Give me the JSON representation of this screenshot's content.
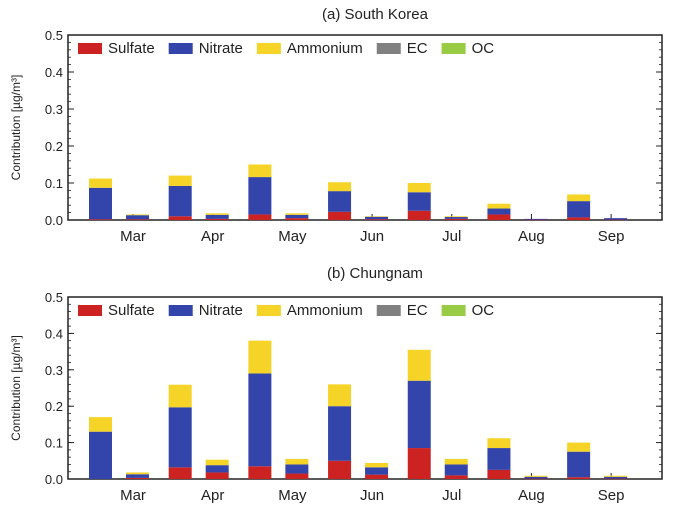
{
  "chart_data": [
    {
      "type": "bar",
      "stacked": true,
      "title": "(a) South Korea",
      "ylabel": "Contribution [µg/m³]",
      "ylim": [
        0,
        0.5
      ],
      "yticks": [
        "0.0",
        "0.1",
        "0.2",
        "0.3",
        "0.4",
        "0.5"
      ],
      "categories": [
        "Mar",
        "Apr",
        "May",
        "Jun",
        "Jul",
        "Aug",
        "Sep"
      ],
      "bars_per_category": 2,
      "legend_position": "top-left",
      "series": [
        {
          "name": "Sulfate",
          "color": "#cc2222",
          "values": [
            [
              0.002,
              0.002
            ],
            [
              0.01,
              0.003
            ],
            [
              0.015,
              0.005
            ],
            [
              0.022,
              0.002
            ],
            [
              0.025,
              0.003
            ],
            [
              0.015,
              0.001
            ],
            [
              0.007,
              0.001
            ]
          ]
        },
        {
          "name": "Nitrate",
          "color": "#3344aa",
          "values": [
            [
              0.085,
              0.011
            ],
            [
              0.082,
              0.011
            ],
            [
              0.101,
              0.009
            ],
            [
              0.056,
              0.007
            ],
            [
              0.05,
              0.005
            ],
            [
              0.016,
              0.002
            ],
            [
              0.044,
              0.004
            ]
          ]
        },
        {
          "name": "Ammonium",
          "color": "#f5d327",
          "values": [
            [
              0.025,
              0.002
            ],
            [
              0.028,
              0.004
            ],
            [
              0.034,
              0.004
            ],
            [
              0.024,
              0.001
            ],
            [
              0.025,
              0.002
            ],
            [
              0.013,
              0.0
            ],
            [
              0.018,
              0.0
            ]
          ]
        },
        {
          "name": "EC",
          "color": "#808080",
          "values": [
            [
              0,
              0
            ],
            [
              0,
              0
            ],
            [
              0,
              0
            ],
            [
              0,
              0
            ],
            [
              0,
              0
            ],
            [
              0,
              0
            ],
            [
              0,
              0
            ]
          ]
        },
        {
          "name": "OC",
          "color": "#99cc44",
          "values": [
            [
              0,
              0
            ],
            [
              0,
              0
            ],
            [
              0,
              0
            ],
            [
              0,
              0
            ],
            [
              0,
              0
            ],
            [
              0,
              0
            ],
            [
              0,
              0
            ]
          ]
        }
      ]
    },
    {
      "type": "bar",
      "stacked": true,
      "title": "(b) Chungnam",
      "ylabel": "Contribution [µg/m³]",
      "ylim": [
        0,
        0.5
      ],
      "yticks": [
        "0.0",
        "0.1",
        "0.2",
        "0.3",
        "0.4",
        "0.5"
      ],
      "categories": [
        "Mar",
        "Apr",
        "May",
        "Jun",
        "Jul",
        "Aug",
        "Sep"
      ],
      "bars_per_category": 2,
      "legend_position": "top-left",
      "series": [
        {
          "name": "Sulfate",
          "color": "#cc2222",
          "values": [
            [
              0.0,
              0.003
            ],
            [
              0.032,
              0.018
            ],
            [
              0.035,
              0.015
            ],
            [
              0.05,
              0.012
            ],
            [
              0.085,
              0.01
            ],
            [
              0.025,
              0.001
            ],
            [
              0.005,
              0.001
            ]
          ]
        },
        {
          "name": "Nitrate",
          "color": "#3344aa",
          "values": [
            [
              0.13,
              0.01
            ],
            [
              0.165,
              0.02
            ],
            [
              0.255,
              0.025
            ],
            [
              0.15,
              0.02
            ],
            [
              0.185,
              0.03
            ],
            [
              0.06,
              0.005
            ],
            [
              0.07,
              0.005
            ]
          ]
        },
        {
          "name": "Ammonium",
          "color": "#f5d327",
          "values": [
            [
              0.04,
              0.005
            ],
            [
              0.062,
              0.015
            ],
            [
              0.09,
              0.015
            ],
            [
              0.06,
              0.012
            ],
            [
              0.085,
              0.015
            ],
            [
              0.027,
              0.003
            ],
            [
              0.025,
              0.003
            ]
          ]
        },
        {
          "name": "EC",
          "color": "#808080",
          "values": [
            [
              0,
              0
            ],
            [
              0,
              0
            ],
            [
              0,
              0
            ],
            [
              0,
              0
            ],
            [
              0,
              0
            ],
            [
              0,
              0
            ],
            [
              0,
              0
            ]
          ]
        },
        {
          "name": "OC",
          "color": "#99cc44",
          "values": [
            [
              0,
              0
            ],
            [
              0,
              0
            ],
            [
              0,
              0
            ],
            [
              0,
              0
            ],
            [
              0,
              0
            ],
            [
              0,
              0
            ],
            [
              0,
              0
            ]
          ]
        }
      ]
    }
  ]
}
